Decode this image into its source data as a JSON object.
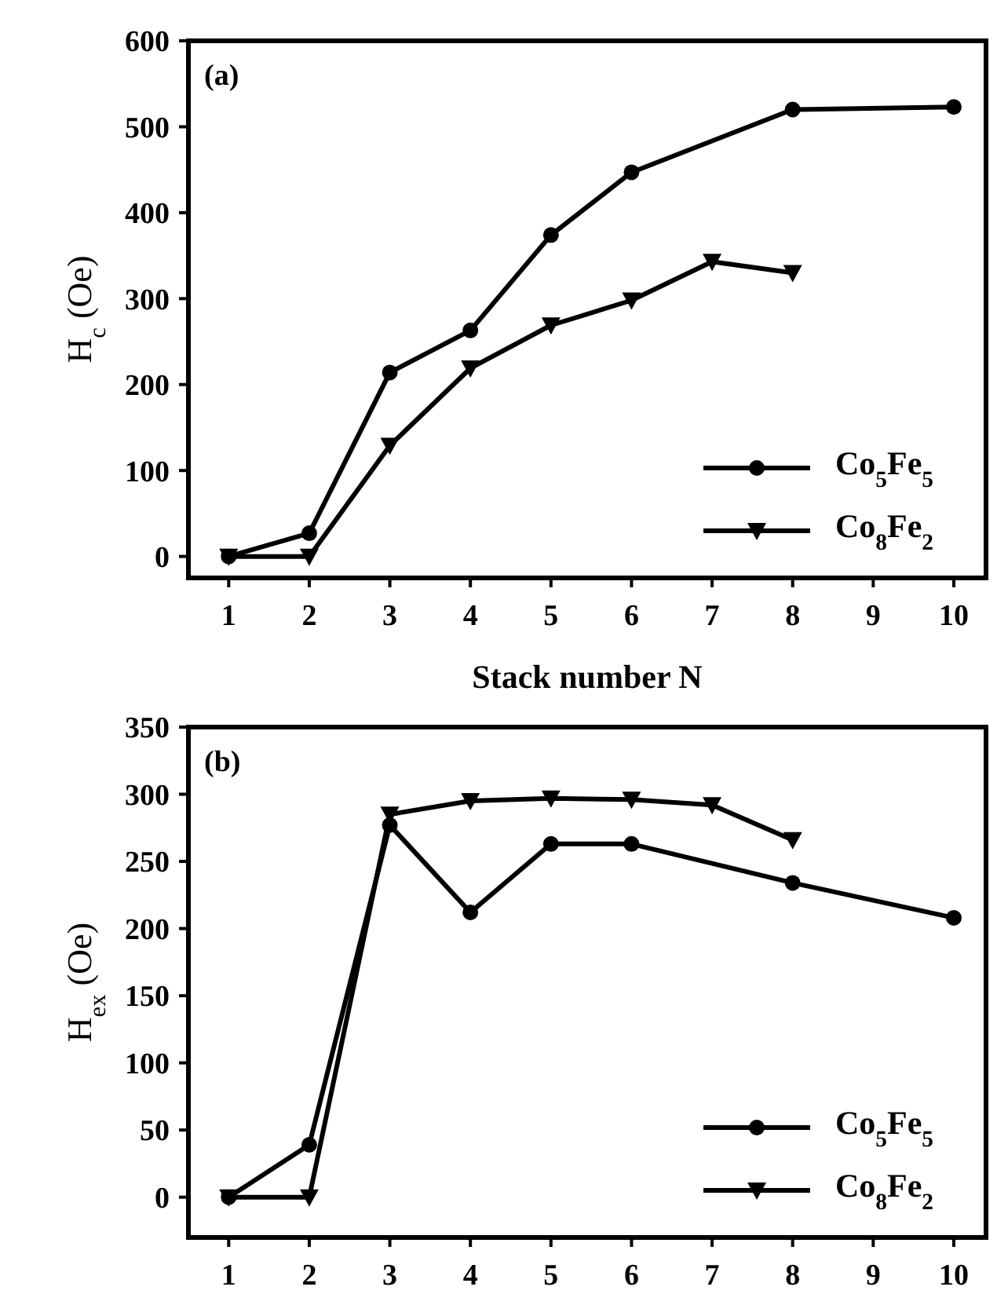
{
  "chart_data": [
    {
      "type": "line",
      "ylabel": "H$_{c}$ (Oe)",
      "xlabel": "Stack number N",
      "annotations": [
        "(a)"
      ],
      "xlim": [
        0.5,
        10.4
      ],
      "xticks": [
        1,
        2,
        3,
        4,
        5,
        6,
        7,
        8,
        9,
        10
      ],
      "ylim": [
        -25,
        600
      ],
      "yticks": [
        0,
        100,
        200,
        300,
        400,
        500,
        600
      ],
      "legend": "bottom right",
      "grid": false,
      "line_style": "solid",
      "series": [
        {
          "name": "Co$_{5}$Fe$_{5}$",
          "color": "#000000",
          "marker": "circle",
          "x": [
            1,
            2,
            3,
            4,
            5,
            6,
            8,
            10
          ],
          "values": [
            0,
            27,
            214,
            263,
            374,
            447,
            520,
            523
          ]
        },
        {
          "name": "Co$_{8}$Fe$_{2}$",
          "color": "#000000",
          "marker": "triangle",
          "x": [
            1,
            2,
            3,
            4,
            5,
            6,
            7,
            8
          ],
          "values": [
            0,
            0,
            129,
            219,
            269,
            298,
            343,
            330
          ]
        }
      ]
    },
    {
      "type": "line",
      "ylabel": "H$_{ex}$ (Oe)",
      "annotations": [
        "(b)"
      ],
      "xlim": [
        0.5,
        10.4
      ],
      "xticks": [
        1,
        2,
        3,
        4,
        5,
        6,
        7,
        8,
        9,
        10
      ],
      "ylim": [
        -30,
        350
      ],
      "yticks": [
        0,
        50,
        100,
        150,
        200,
        250,
        300,
        350
      ],
      "legend": "bottom right",
      "grid": false,
      "line_style": "solid",
      "series": [
        {
          "name": "Co$_{5}$Fe$_{5}$",
          "color": "#000000",
          "marker": "circle",
          "x": [
            1,
            2,
            3,
            4,
            5,
            6,
            8,
            10
          ],
          "values": [
            0,
            39,
            277,
            212,
            263,
            263,
            234,
            208
          ]
        },
        {
          "name": "Co$_{8}$Fe$_{2}$",
          "color": "#000000",
          "marker": "triangle",
          "x": [
            1,
            2,
            3,
            4,
            5,
            6,
            7,
            8
          ],
          "values": [
            0,
            0,
            285,
            295,
            297,
            296,
            292,
            266
          ]
        }
      ]
    }
  ]
}
